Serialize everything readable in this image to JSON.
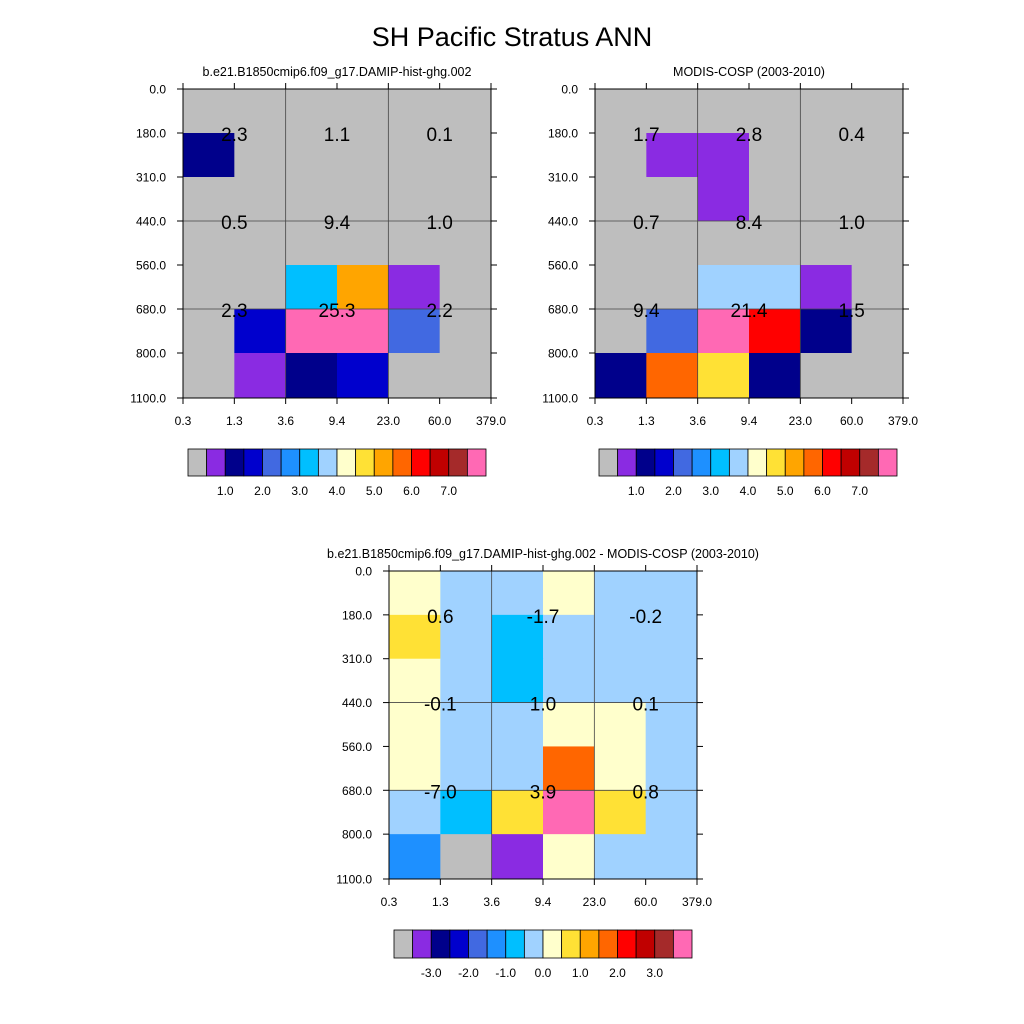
{
  "title": "SH Pacific Stratus ANN",
  "colors": {
    "main": [
      "#BEBEBE",
      "#8A2BE2",
      "#00008B",
      "#0000CD",
      "#4169E1",
      "#1E90FF",
      "#00BFFF",
      "#A0D2FF",
      "#FFFFCC",
      "#FFE135",
      "#FFA500",
      "#FF6600",
      "#FF0000",
      "#C00000",
      "#A52A2A",
      "#FF69B4"
    ],
    "diff": [
      "#BEBEBE",
      "#8A2BE2",
      "#00008B",
      "#0000CD",
      "#4169E1",
      "#1E90FF",
      "#00BFFF",
      "#A0D2FF",
      "#FFFFCC",
      "#FFE135",
      "#FFA500",
      "#FF6600",
      "#FF0000",
      "#C00000",
      "#A52A2A",
      "#FF69B4"
    ]
  },
  "labelbars": {
    "main": {
      "labels": [
        "1.0",
        "2.0",
        "3.0",
        "4.0",
        "5.0",
        "6.0",
        "7.0"
      ],
      "label_box_start": 1
    },
    "diff": {
      "labels": [
        "-3.0",
        "-2.0",
        "-1.0",
        "0.0",
        "1.0",
        "2.0",
        "3.0"
      ],
      "label_box_start": 1
    }
  },
  "chart_data": [
    {
      "type": "heatmap",
      "title": "b.e21.B1850cmip6.f09_g17.DAMIP-hist-ghg.002",
      "x_ticks": [
        "0.3",
        "1.3",
        "3.6",
        "9.4",
        "23.0",
        "60.0",
        "379.0"
      ],
      "y_ticks": [
        "0.0",
        "180.0",
        "310.0",
        "440.0",
        "560.0",
        "680.0",
        "800.0",
        "1100.0"
      ],
      "colorbar": "main",
      "cell_colors": [
        [
          0,
          0,
          0,
          0,
          0,
          0
        ],
        [
          2,
          0,
          0,
          0,
          0,
          0
        ],
        [
          0,
          0,
          0,
          0,
          0,
          0
        ],
        [
          0,
          0,
          0,
          0,
          0,
          0
        ],
        [
          0,
          0,
          6,
          10,
          1,
          0
        ],
        [
          0,
          3,
          15,
          15,
          4,
          0
        ],
        [
          0,
          1,
          2,
          3,
          0,
          0
        ]
      ],
      "block_labels": [
        [
          "2.3",
          "1.1",
          "0.1"
        ],
        [
          "0.5",
          "9.4",
          "1.0"
        ],
        [
          "2.3",
          "25.3",
          "2.2"
        ]
      ]
    },
    {
      "type": "heatmap",
      "title": "MODIS-COSP (2003-2010)",
      "x_ticks": [
        "0.3",
        "1.3",
        "3.6",
        "9.4",
        "23.0",
        "60.0",
        "379.0"
      ],
      "y_ticks": [
        "0.0",
        "180.0",
        "310.0",
        "440.0",
        "560.0",
        "680.0",
        "800.0",
        "1100.0"
      ],
      "colorbar": "main",
      "cell_colors": [
        [
          0,
          0,
          0,
          0,
          0,
          0
        ],
        [
          0,
          1,
          1,
          0,
          0,
          0
        ],
        [
          0,
          0,
          1,
          0,
          0,
          0
        ],
        [
          0,
          0,
          0,
          0,
          0,
          0
        ],
        [
          0,
          0,
          7,
          7,
          1,
          0
        ],
        [
          0,
          4,
          15,
          12,
          2,
          0
        ],
        [
          2,
          11,
          9,
          2,
          0,
          0
        ]
      ],
      "block_labels": [
        [
          "1.7",
          "2.8",
          "0.4"
        ],
        [
          "0.7",
          "8.4",
          "1.0"
        ],
        [
          "9.4",
          "21.4",
          "1.5"
        ]
      ]
    },
    {
      "type": "heatmap",
      "title": "b.e21.B1850cmip6.f09_g17.DAMIP-hist-ghg.002 - MODIS-COSP (2003-2010)",
      "x_ticks": [
        "0.3",
        "1.3",
        "3.6",
        "9.4",
        "23.0",
        "60.0",
        "379.0"
      ],
      "y_ticks": [
        "0.0",
        "180.0",
        "310.0",
        "440.0",
        "560.0",
        "680.0",
        "800.0",
        "1100.0"
      ],
      "colorbar": "diff",
      "cell_colors": [
        [
          8,
          7,
          7,
          8,
          7,
          7
        ],
        [
          9,
          7,
          6,
          7,
          7,
          7
        ],
        [
          8,
          7,
          6,
          7,
          7,
          7
        ],
        [
          8,
          7,
          7,
          8,
          8,
          7
        ],
        [
          8,
          7,
          7,
          11,
          8,
          7
        ],
        [
          7,
          6,
          9,
          15,
          9,
          7
        ],
        [
          5,
          0,
          1,
          8,
          7,
          7
        ]
      ],
      "block_labels": [
        [
          "0.6",
          "-1.7",
          "-0.2"
        ],
        [
          "-0.1",
          "1.0",
          "0.1"
        ],
        [
          "-7.0",
          "3.9",
          "0.8"
        ]
      ]
    }
  ]
}
